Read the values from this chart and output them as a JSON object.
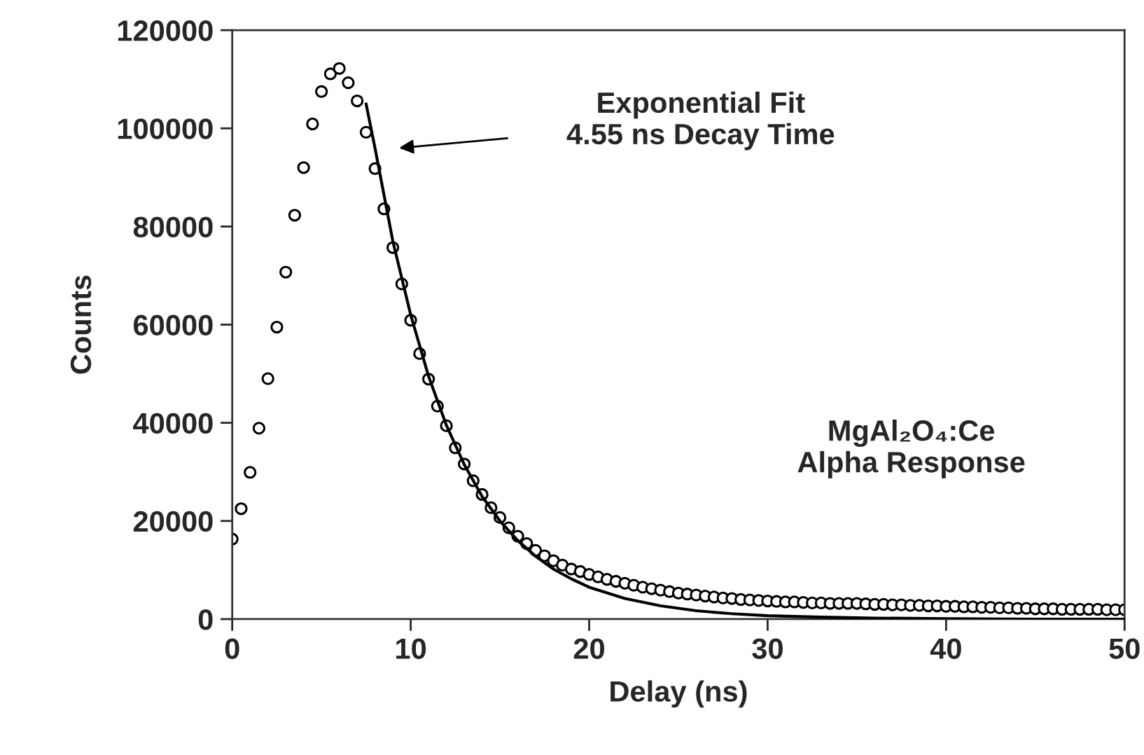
{
  "chart_data": {
    "type": "scatter",
    "xlabel": "Delay (ns)",
    "ylabel": "Counts",
    "xlim": [
      0,
      50
    ],
    "xticks": [
      0,
      10,
      20,
      30,
      40,
      50
    ],
    "ylim": [
      0,
      120000
    ],
    "yticks": [
      0,
      20000,
      40000,
      60000,
      80000,
      100000,
      120000
    ],
    "grid": false,
    "legend": false,
    "annotations": [
      "Exponential Fit\n4.55 ns Decay Time",
      "MgAl₂O₄:Ce\nAlpha Response"
    ],
    "series": [
      {
        "marker": "circle",
        "color": "#000000",
        "x": [
          0,
          0.5,
          1,
          1.5,
          2,
          2.5,
          3,
          3.5,
          4,
          4.5,
          5,
          5.5,
          6,
          6.5,
          7,
          7.5,
          8,
          8.5,
          9,
          9.5,
          10,
          10.5,
          11,
          11.5,
          12,
          12.5,
          13,
          13.5,
          14,
          14.5,
          15,
          15.5,
          16,
          16.5,
          17,
          17.5,
          18,
          18.5,
          19,
          19.5,
          20,
          20.5,
          21,
          21.5,
          22,
          22.5,
          23,
          23.5,
          24,
          24.5,
          25,
          25.5,
          26,
          26.5,
          27,
          27.5,
          28,
          28.5,
          29,
          29.5,
          30,
          30.5,
          31,
          31.5,
          32,
          32.5,
          33,
          33.5,
          34,
          34.5,
          35,
          35.5,
          36,
          36.5,
          37,
          37.5,
          38,
          38.5,
          39,
          39.5,
          40,
          40.5,
          41,
          41.5,
          42,
          42.5,
          43,
          43.5,
          44,
          44.5,
          45,
          45.5,
          46,
          46.5,
          47,
          47.5,
          48,
          48.5,
          49,
          49.5,
          50
        ],
        "values": [
          16300,
          22500,
          29900,
          38900,
          49000,
          59500,
          70700,
          82300,
          92000,
          100900,
          107500,
          111100,
          112200,
          109300,
          105600,
          99200,
          91800,
          83600,
          75700,
          68300,
          60900,
          54100,
          48900,
          43400,
          39400,
          34900,
          31600,
          28200,
          25400,
          22700,
          20700,
          18600,
          16900,
          15400,
          14000,
          12900,
          11900,
          11000,
          10200,
          9700,
          9100,
          8600,
          8100,
          7700,
          7300,
          6900,
          6500,
          6200,
          5900,
          5600,
          5300,
          5100,
          4900,
          4700,
          4500,
          4300,
          4200,
          4000,
          3900,
          3800,
          3700,
          3600,
          3500,
          3500,
          3400,
          3300,
          3300,
          3200,
          3200,
          3200,
          3200,
          3100,
          3000,
          3000,
          2900,
          2900,
          2800,
          2800,
          2700,
          2700,
          2600,
          2600,
          2500,
          2500,
          2400,
          2400,
          2300,
          2300,
          2200,
          2200,
          2100,
          2100,
          2100,
          2000,
          2000,
          2000,
          2000,
          2000,
          1900,
          1900,
          1900
        ]
      },
      {
        "type": "line",
        "marker": "none",
        "line_style": "solid",
        "color": "#000000",
        "x": [
          7.5,
          8,
          9,
          10,
          11,
          12,
          13,
          14,
          15,
          16,
          17,
          18,
          19,
          20,
          22,
          24,
          26,
          28,
          30,
          33,
          36,
          40,
          45,
          50
        ],
        "values": [
          105000,
          96000,
          77000,
          62000,
          49500,
          39500,
          31500,
          25000,
          20000,
          16000,
          12800,
          10200,
          8200,
          6500,
          4200,
          2700,
          1700,
          1100,
          700,
          400,
          200,
          100,
          0,
          0
        ]
      }
    ]
  }
}
